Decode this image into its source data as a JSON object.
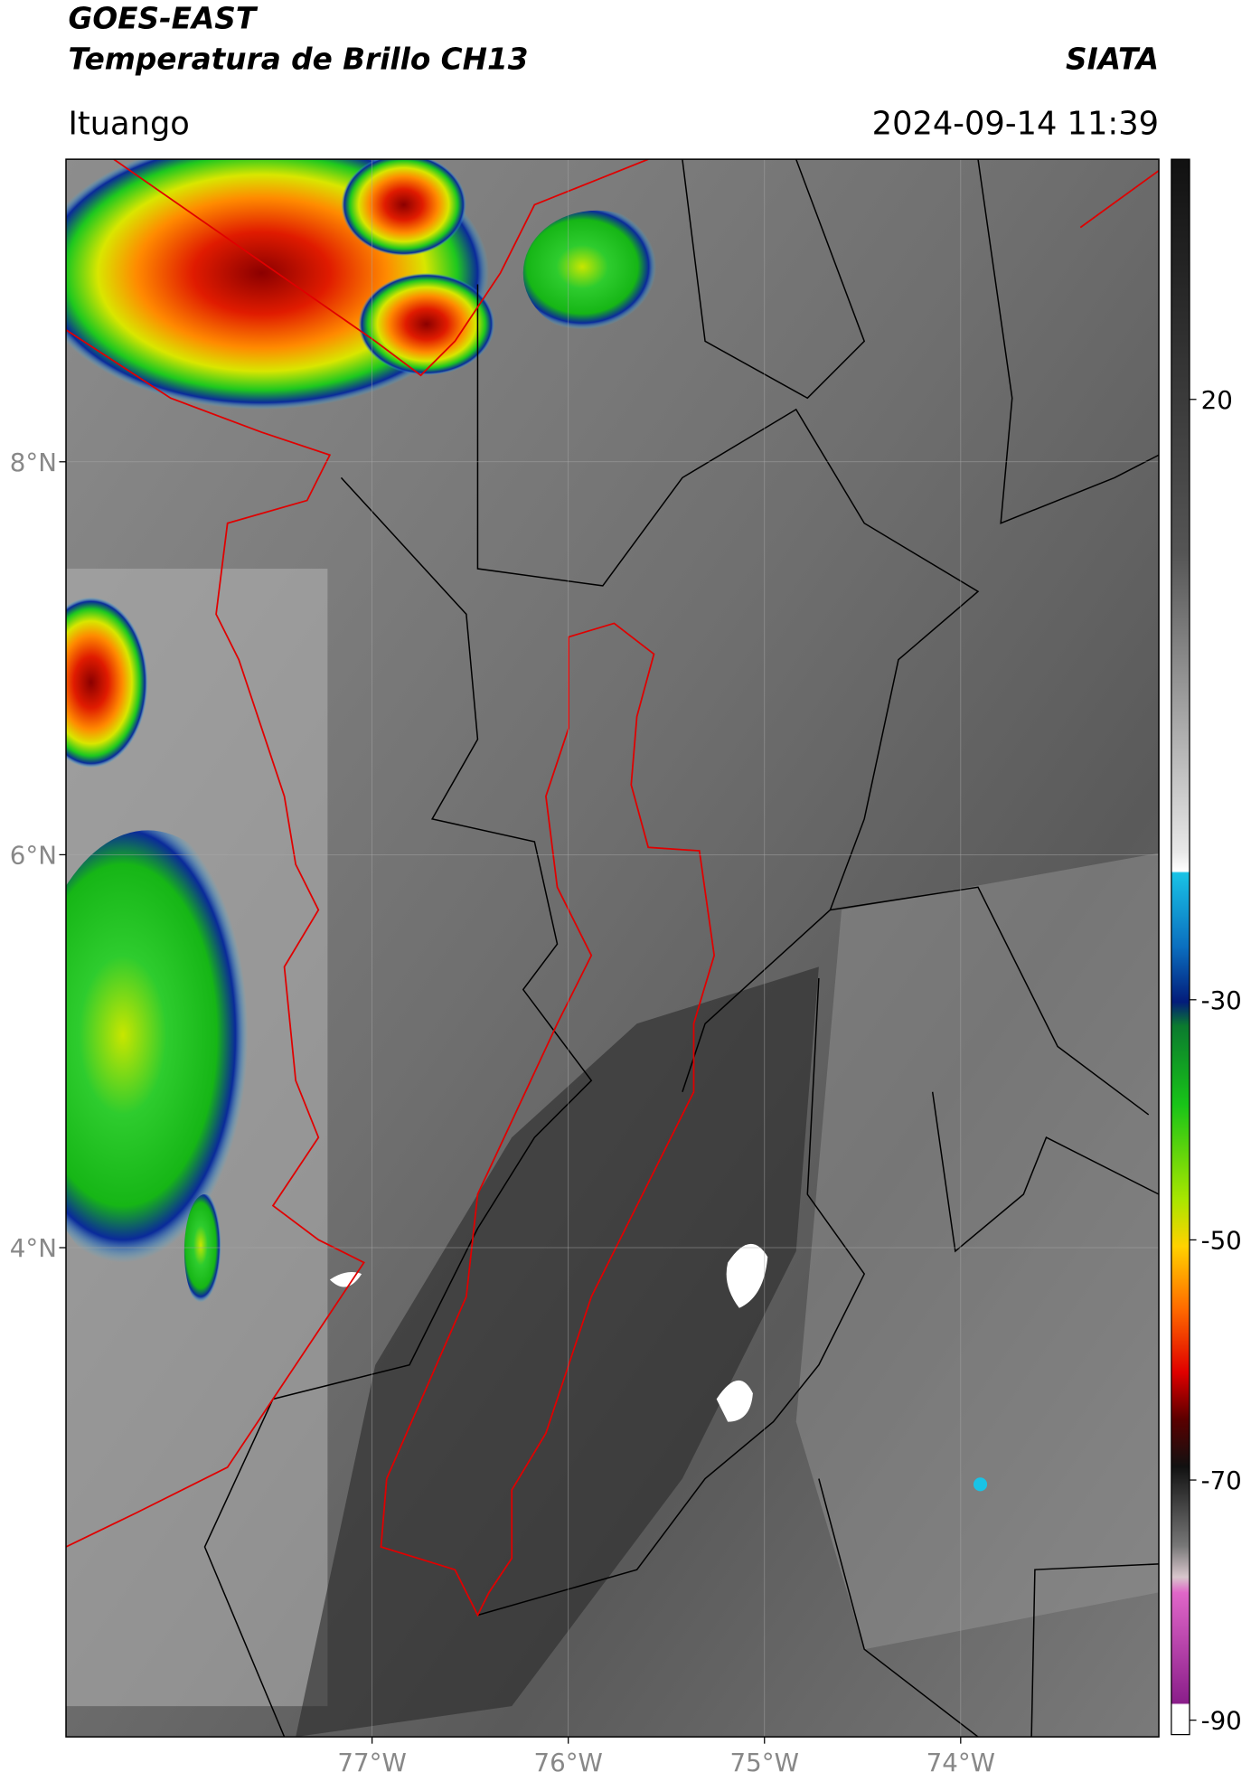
{
  "header": {
    "title": "GOES-EAST",
    "subtitle": "Temperatura de Brillo CH13",
    "source": "SIATA",
    "location": "Ituango",
    "datetime": "2024-09-14 11:39"
  },
  "map": {
    "xlim": [
      -78.56,
      -72.99
    ],
    "ylim": [
      1.51,
      9.54
    ],
    "xticks": [
      {
        "value": -77,
        "label": "77°W"
      },
      {
        "value": -76,
        "label": "76°W"
      },
      {
        "value": -75,
        "label": "75°W"
      },
      {
        "value": -74,
        "label": "74°W"
      }
    ],
    "yticks": [
      {
        "value": 8,
        "label": "8°N"
      },
      {
        "value": 6,
        "label": "6°N"
      },
      {
        "value": 4,
        "label": "4°N"
      }
    ]
  },
  "colorbar": {
    "lim": [
      -91.2,
      40
    ],
    "ticks": [
      20,
      -30,
      -50,
      -70,
      -90
    ]
  }
}
